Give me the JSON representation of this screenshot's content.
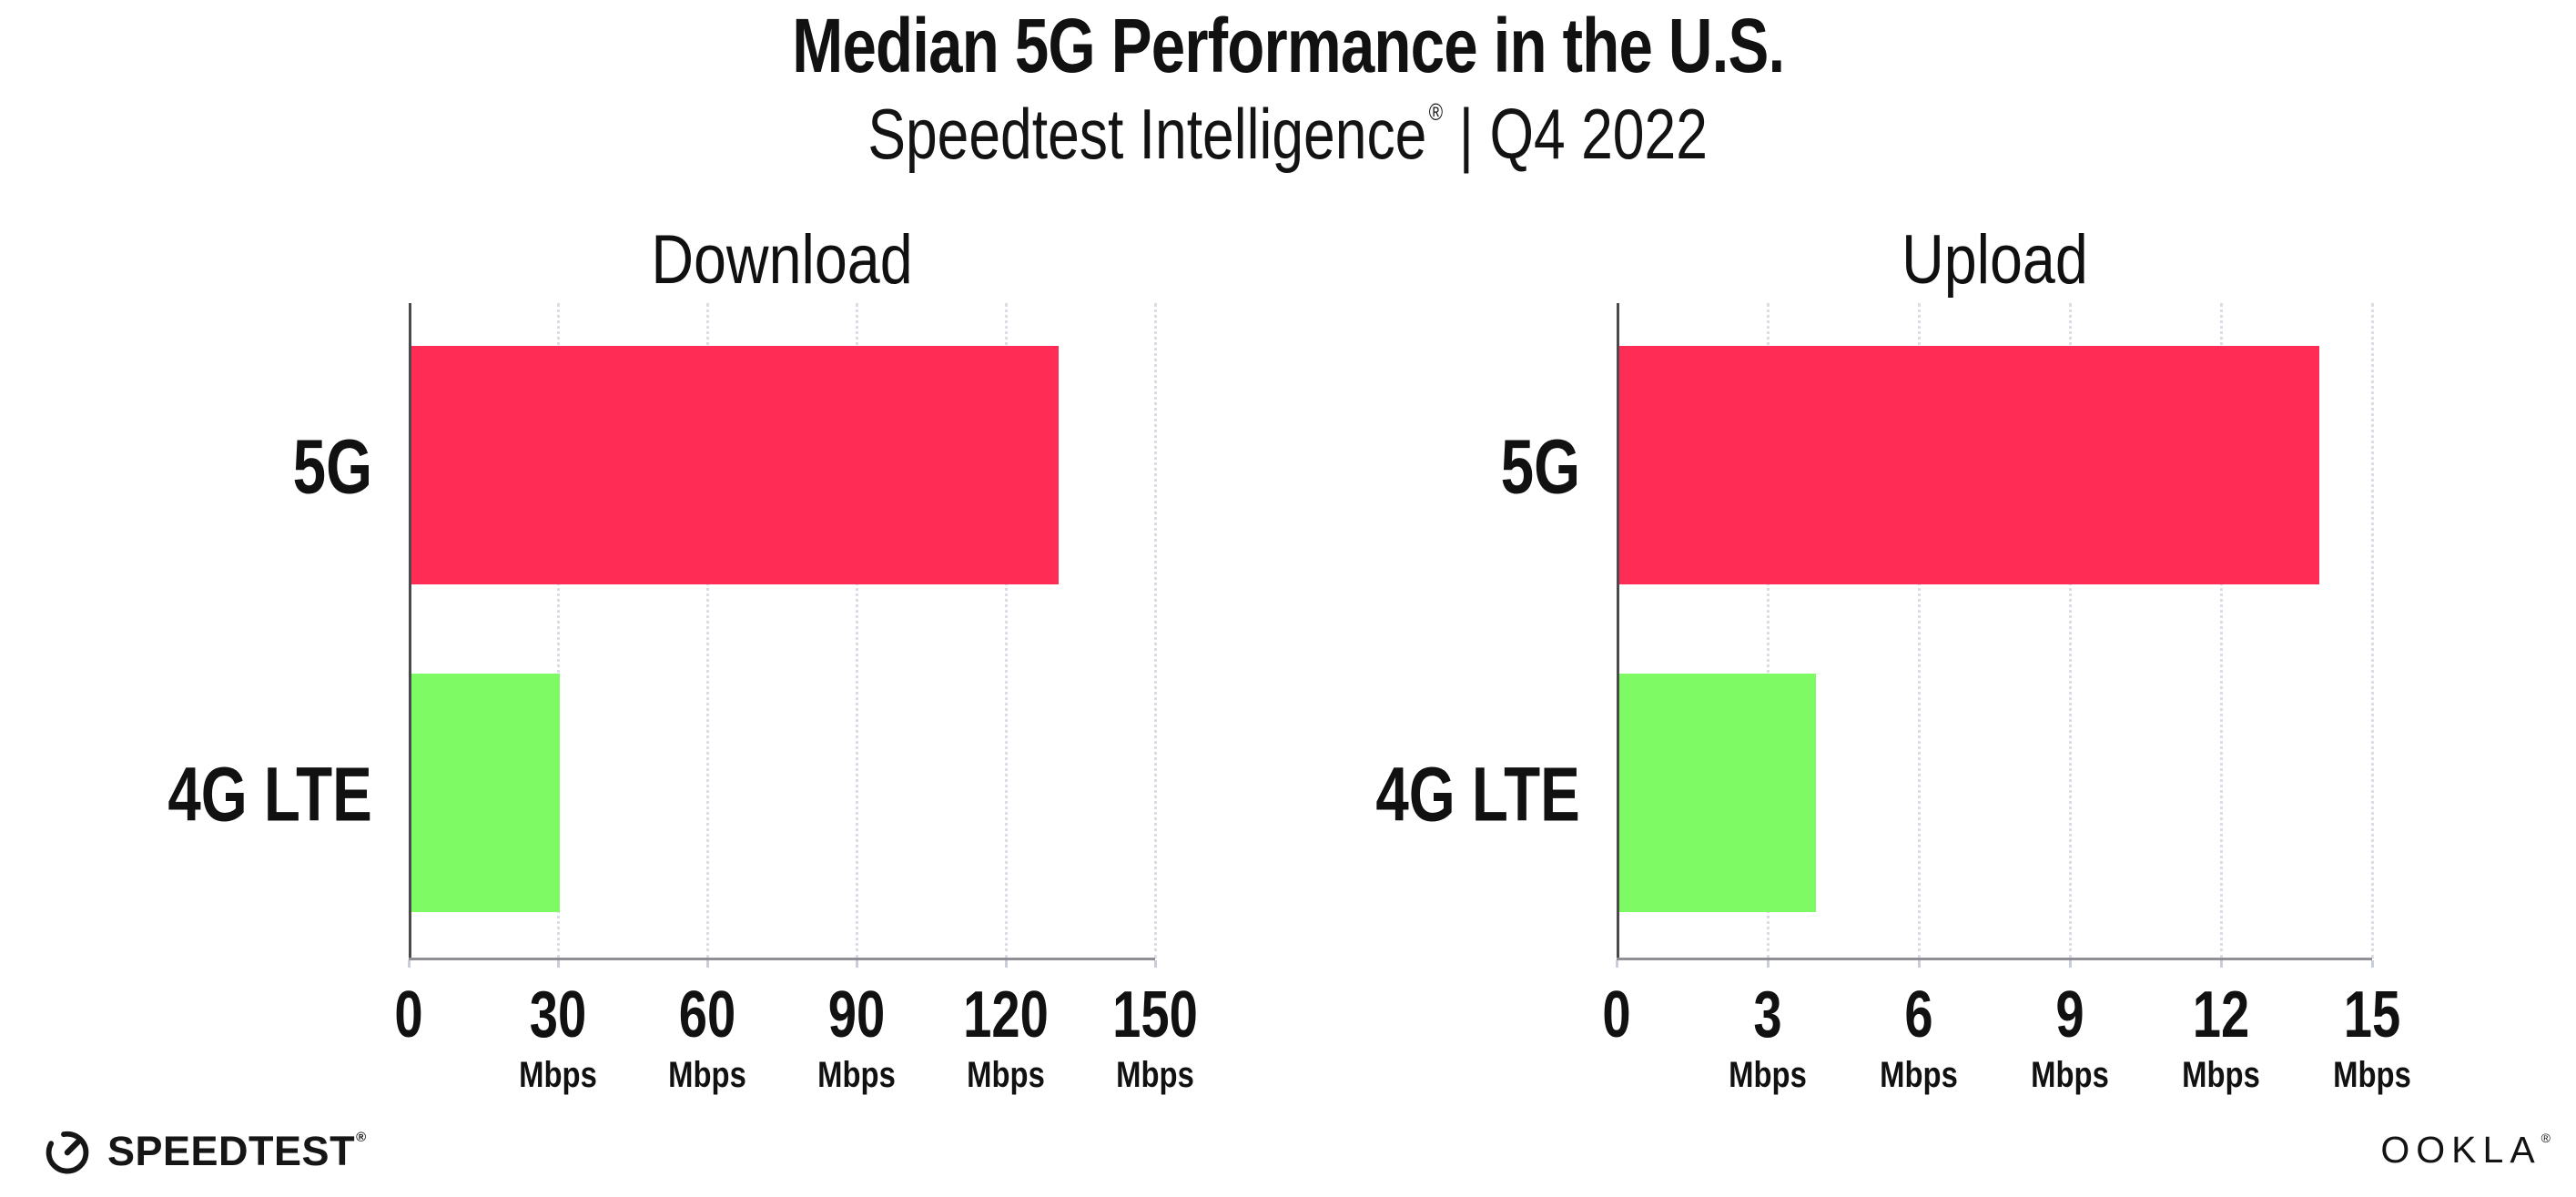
{
  "header": {
    "title": "Median 5G Performance in the U.S.",
    "subtitle_brand": "Speedtest Intelligence",
    "subtitle_trademark": "®",
    "subtitle_divider": "|",
    "subtitle_period": "Q4 2022"
  },
  "chart_data": [
    {
      "type": "bar",
      "orientation": "horizontal",
      "title": "Download",
      "categories": [
        "5G",
        "4G LTE"
      ],
      "values": [
        130,
        29.8
      ],
      "unit": "Mbps",
      "tick_unit": "Mbps",
      "xlim": [
        0,
        150
      ],
      "xticks": [
        0,
        30,
        60,
        90,
        120,
        150
      ],
      "bar_colors": [
        "#FF2D55",
        "#7DFA64"
      ],
      "grid": "dotted vertical gridlines at each labeled tick",
      "legend": "none"
    },
    {
      "type": "bar",
      "orientation": "horizontal",
      "title": "Upload",
      "categories": [
        "5G",
        "4G LTE"
      ],
      "values": [
        13.9,
        3.9
      ],
      "unit": "Mbps",
      "tick_unit": "Mbps",
      "xlim": [
        0,
        15
      ],
      "xticks": [
        0,
        3,
        6,
        9,
        12,
        15
      ],
      "bar_colors": [
        "#FF2D55",
        "#7DFA64"
      ],
      "grid": "dotted vertical gridlines at each labeled tick",
      "legend": "none"
    }
  ],
  "footer": {
    "speedtest_logo_text": "SPEEDTEST",
    "speedtest_trademark": "®",
    "speedtest_icon": "gauge-icon",
    "ookla_logo_text": "OOKLA",
    "ookla_trademark": "®"
  },
  "colors": {
    "bar_5g": "#FF2D55",
    "bar_4g_lte": "#7DFA64",
    "gridline": "#DCDCE6",
    "x_axis_line": "#8F8F95",
    "y_axis_line": "#4A4A4E",
    "text": "#111111",
    "background": "#FFFFFF"
  }
}
